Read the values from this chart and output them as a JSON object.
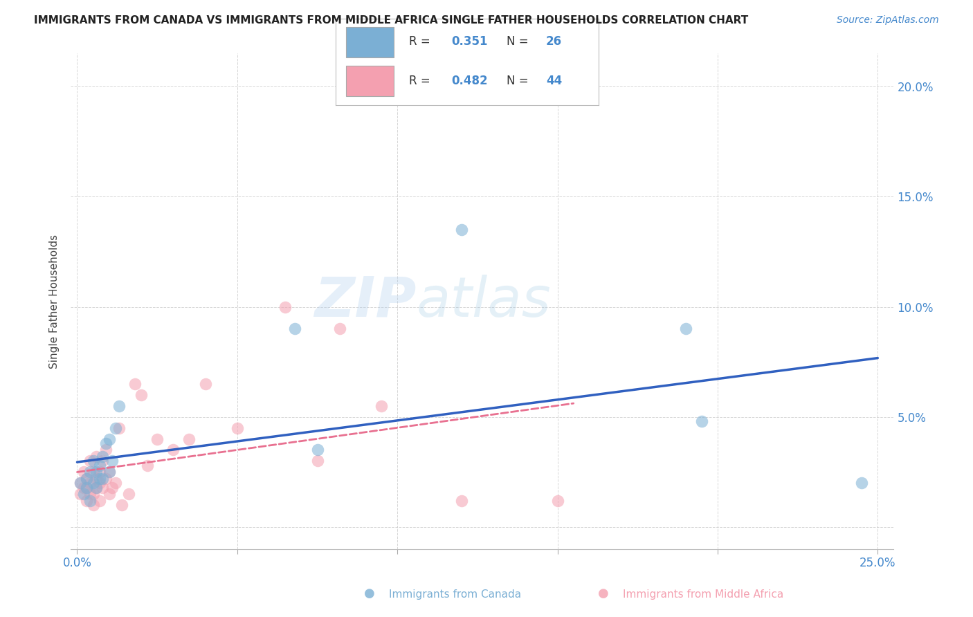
{
  "title": "IMMIGRANTS FROM CANADA VS IMMIGRANTS FROM MIDDLE AFRICA SINGLE FATHER HOUSEHOLDS CORRELATION CHART",
  "source": "Source: ZipAtlas.com",
  "xlabel_canada": "Immigrants from Canada",
  "xlabel_middle_africa": "Immigrants from Middle Africa",
  "ylabel": "Single Father Households",
  "xlim": [
    -0.002,
    0.255
  ],
  "ylim": [
    -0.01,
    0.215
  ],
  "xticks": [
    0.0,
    0.05,
    0.1,
    0.15,
    0.2,
    0.25
  ],
  "yticks": [
    0.0,
    0.05,
    0.1,
    0.15,
    0.2
  ],
  "xticklabels": [
    "0.0%",
    "",
    "",
    "",
    "",
    "25.0%"
  ],
  "yticklabels_right": [
    "",
    "5.0%",
    "10.0%",
    "15.0%",
    "20.0%"
  ],
  "canada_R": 0.351,
  "canada_N": 26,
  "africa_R": 0.482,
  "africa_N": 44,
  "canada_color": "#7BAFD4",
  "africa_color": "#F4A0B0",
  "canada_line_color": "#3060C0",
  "africa_line_color": "#E87090",
  "watermark_zip": "ZIP",
  "watermark_atlas": "atlas",
  "canada_x": [
    0.001,
    0.002,
    0.003,
    0.003,
    0.004,
    0.004,
    0.005,
    0.005,
    0.006,
    0.006,
    0.007,
    0.007,
    0.008,
    0.008,
    0.009,
    0.01,
    0.01,
    0.011,
    0.012,
    0.013,
    0.068,
    0.075,
    0.12,
    0.19,
    0.195,
    0.245
  ],
  "canada_y": [
    0.02,
    0.015,
    0.018,
    0.022,
    0.025,
    0.012,
    0.03,
    0.02,
    0.025,
    0.018,
    0.022,
    0.028,
    0.032,
    0.022,
    0.038,
    0.025,
    0.04,
    0.03,
    0.045,
    0.055,
    0.09,
    0.035,
    0.135,
    0.09,
    0.048,
    0.02
  ],
  "africa_x": [
    0.001,
    0.001,
    0.002,
    0.002,
    0.003,
    0.003,
    0.003,
    0.004,
    0.004,
    0.004,
    0.005,
    0.005,
    0.005,
    0.006,
    0.006,
    0.006,
    0.007,
    0.007,
    0.007,
    0.008,
    0.008,
    0.009,
    0.009,
    0.01,
    0.01,
    0.011,
    0.012,
    0.013,
    0.014,
    0.016,
    0.018,
    0.02,
    0.022,
    0.025,
    0.03,
    0.035,
    0.04,
    0.05,
    0.065,
    0.075,
    0.082,
    0.095,
    0.12,
    0.15
  ],
  "africa_y": [
    0.015,
    0.02,
    0.018,
    0.025,
    0.012,
    0.018,
    0.022,
    0.015,
    0.02,
    0.03,
    0.01,
    0.015,
    0.025,
    0.018,
    0.022,
    0.032,
    0.012,
    0.02,
    0.025,
    0.018,
    0.03,
    0.022,
    0.035,
    0.015,
    0.025,
    0.018,
    0.02,
    0.045,
    0.01,
    0.015,
    0.065,
    0.06,
    0.028,
    0.04,
    0.035,
    0.04,
    0.065,
    0.045,
    0.1,
    0.03,
    0.09,
    0.055,
    0.012,
    0.012
  ]
}
